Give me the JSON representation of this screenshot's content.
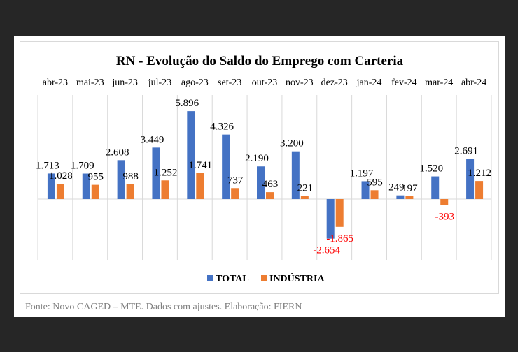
{
  "source_note": "Fonte: Novo CAGED – MTE. Dados com ajustes. Elaboração: FIERN",
  "chart_data": {
    "type": "bar",
    "title": "RN - Evolução do Saldo do Emprego com Carteria",
    "xlabel": "",
    "ylabel": "",
    "categories": [
      "abr-23",
      "mai-23",
      "jun-23",
      "jul-23",
      "ago-23",
      "set-23",
      "out-23",
      "nov-23",
      "dez-23",
      "jan-24",
      "fev-24",
      "mar-24",
      "abr-24"
    ],
    "series": [
      {
        "name": "TOTAL",
        "color": "#4472C4",
        "values": [
          1713,
          1709,
          2608,
          3449,
          5896,
          4326,
          2190,
          3200,
          -2654,
          1197,
          249,
          1520,
          2691
        ],
        "labels": [
          "1.713",
          "1.709",
          "2.608",
          "3.449",
          "5.896",
          "4.326",
          "2.190",
          "3.200",
          "-2.654",
          "1.197",
          "249",
          "1.520",
          "2.691"
        ]
      },
      {
        "name": "INDÚSTRIA",
        "color": "#ED7D31",
        "values": [
          1028,
          955,
          988,
          1252,
          1741,
          737,
          463,
          221,
          -1865,
          595,
          197,
          -393,
          1212
        ],
        "labels": [
          "1.028",
          "955",
          "988",
          "1.252",
          "1.741",
          "737",
          "463",
          "221",
          "-1.865",
          "595",
          "197",
          "-393",
          "1.212"
        ]
      }
    ],
    "negative_label_color": "#FF0000",
    "category_axis_position": "top",
    "legend_position": "bottom",
    "gridlines": "vertical-category-separators",
    "value_axis_visible": false
  }
}
